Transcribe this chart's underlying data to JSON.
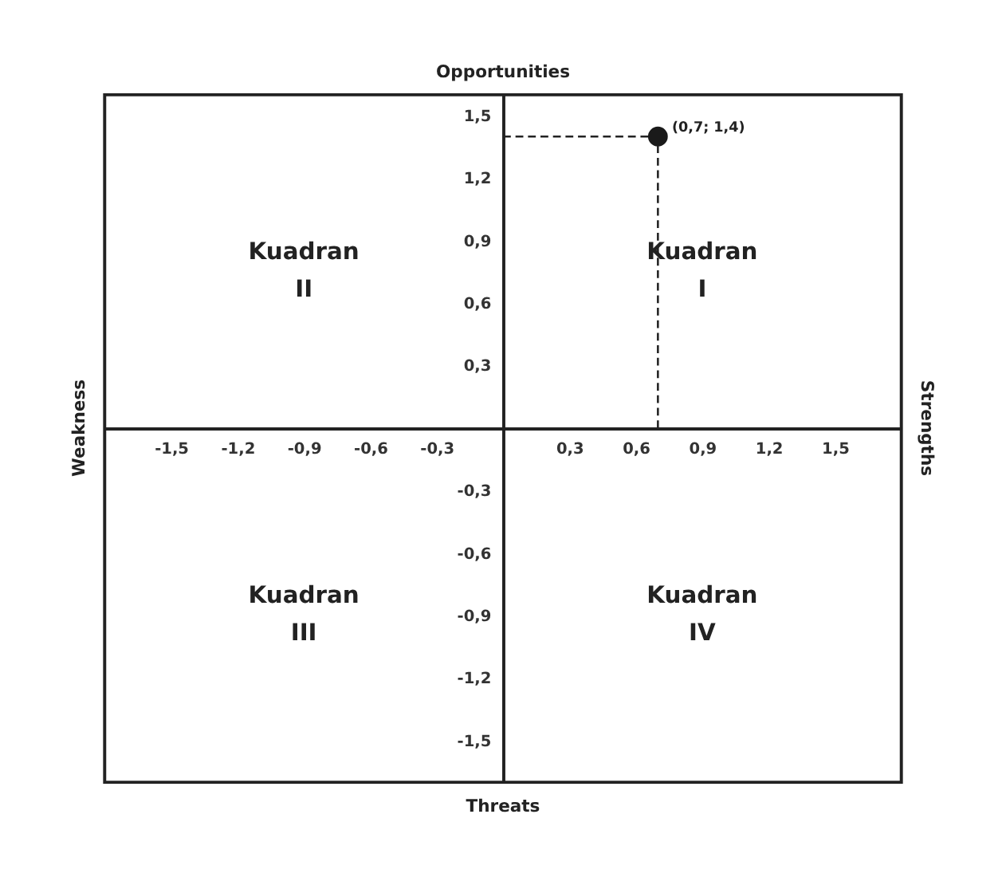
{
  "chart_data": {
    "type": "scatter",
    "x2label": "Opportunities",
    "xlabel": "Threats",
    "ylabel": "Weakness",
    "y2label": "Strengths",
    "x": [
      0.7
    ],
    "series": [
      {
        "color": "#1a1a1a",
        "values": [
          1.4
        ]
      }
    ],
    "marker": "circle",
    "xlim": [
      -1.8,
      1.8
    ],
    "ylim": [
      -1.7,
      1.6
    ],
    "xticks": [
      {
        "value": -1.5,
        "label": "-1,5"
      },
      {
        "value": -1.2,
        "label": "-1,2"
      },
      {
        "value": -0.9,
        "label": "-0,9"
      },
      {
        "value": -0.6,
        "label": "-0,6"
      },
      {
        "value": -0.3,
        "label": "-0,3"
      },
      {
        "value": 0.3,
        "label": "0,3"
      },
      {
        "value": 0.6,
        "label": "0,6"
      },
      {
        "value": 0.9,
        "label": "0,9"
      },
      {
        "value": 1.2,
        "label": "1,2"
      },
      {
        "value": 1.5,
        "label": "1,5"
      }
    ],
    "yticks": [
      {
        "value": -1.5,
        "label": "-1,5"
      },
      {
        "value": -1.2,
        "label": "-1,2"
      },
      {
        "value": -0.9,
        "label": "-0,9"
      },
      {
        "value": -0.6,
        "label": "-0,6"
      },
      {
        "value": -0.3,
        "label": "-0,3"
      },
      {
        "value": 0.3,
        "label": "0,3"
      },
      {
        "value": 0.6,
        "label": "0,6"
      },
      {
        "value": 0.9,
        "label": "0,9"
      },
      {
        "value": 1.2,
        "label": "1,2"
      },
      {
        "value": 1.5,
        "label": "1,5"
      }
    ],
    "ref_lines": [
      {
        "axis": "x",
        "value": 0.7,
        "line_style": "dashed"
      },
      {
        "axis": "y",
        "value": 1.4,
        "line_style": "dashed"
      }
    ],
    "annotations": [
      "Kuadran I",
      "Kuadran II",
      "Kuadran III",
      "Kuadran IV",
      {
        "text": "(0,7; 1,4)",
        "x": 0.7,
        "y": 1.4
      }
    ],
    "grid": false
  }
}
